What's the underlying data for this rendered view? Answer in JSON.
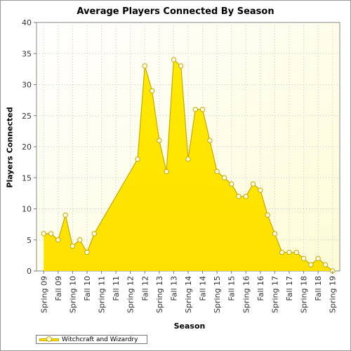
{
  "chart_data": {
    "type": "area",
    "title": "Average Players Connected By Season",
    "xlabel": "Season",
    "ylabel": "Players Connected",
    "ylim": [
      0,
      40
    ],
    "yticks": [
      "0",
      "5",
      "10",
      "15",
      "20",
      "25",
      "30",
      "35",
      "40"
    ],
    "categories": [
      "Spring 09",
      "Fall 09",
      "Spring 10",
      "Fall 10",
      "Spring 11",
      "Fall 11",
      "Spring 12",
      "Fall 12",
      "Spring 13",
      "Fall 13",
      "Spring 14",
      "Fall 14",
      "Spring 15",
      "Fall 15",
      "Spring 16",
      "Fall 16",
      "Spring 17",
      "Fall 17",
      "Spring 18",
      "Fall 18",
      "Spring 19"
    ],
    "grid": true,
    "legend_position": "bottom-left",
    "series": [
      {
        "name": "Witchcraft and Wizardry",
        "color": "#ffe500",
        "points": [
          [
            0,
            6
          ],
          [
            0.5,
            6
          ],
          [
            1,
            5
          ],
          [
            1.5,
            9
          ],
          [
            2,
            4
          ],
          [
            2.5,
            5
          ],
          [
            3,
            3
          ],
          [
            3.5,
            6
          ],
          [
            6.5,
            18
          ],
          [
            7,
            33
          ],
          [
            7.5,
            29
          ],
          [
            8,
            21
          ],
          [
            8.5,
            16
          ],
          [
            9,
            34
          ],
          [
            9.5,
            33
          ],
          [
            10,
            18
          ],
          [
            10.5,
            26
          ],
          [
            11,
            26
          ],
          [
            11.5,
            21
          ],
          [
            12,
            16
          ],
          [
            12.5,
            15
          ],
          [
            13,
            14
          ],
          [
            13.5,
            12
          ],
          [
            14,
            12
          ],
          [
            14.5,
            14
          ],
          [
            15,
            13
          ],
          [
            15.5,
            9
          ],
          [
            16,
            6
          ],
          [
            16.5,
            3
          ],
          [
            17,
            3
          ],
          [
            17.5,
            3
          ],
          [
            18,
            2
          ],
          [
            18.5,
            1
          ],
          [
            19,
            2
          ],
          [
            19.5,
            1
          ],
          [
            20,
            0
          ]
        ]
      }
    ]
  }
}
